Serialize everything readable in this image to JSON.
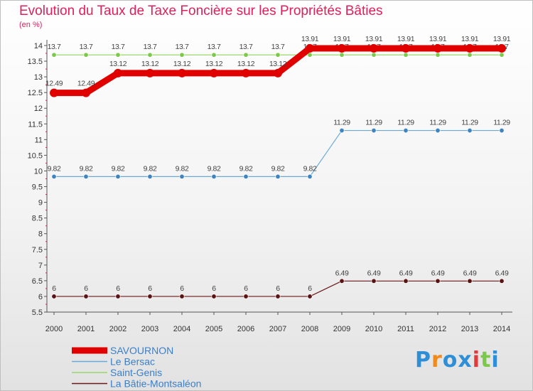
{
  "chart_data": {
    "type": "line",
    "title": "Evolution du Taux de Taxe Foncière sur les Propriétés Bâties",
    "subtitle": "(en %)",
    "xlabel": "",
    "ylabel": "",
    "x": [
      "2000",
      "2001",
      "2002",
      "2003",
      "2004",
      "2005",
      "2006",
      "2007",
      "2008",
      "2009",
      "2010",
      "2011",
      "2012",
      "2013",
      "2014"
    ],
    "ylim": [
      5.5,
      14
    ],
    "yticks": [
      "5.5",
      "6",
      "6.5",
      "7",
      "7.5",
      "8",
      "8.5",
      "9",
      "9.5",
      "10",
      "10.5",
      "11",
      "11.5",
      "12",
      "12.5",
      "13",
      "13.5",
      "14"
    ],
    "series": [
      {
        "name": "La Bâtie-Montsaléon",
        "color": "#6b1a1a",
        "marker_color": "#5a1212",
        "width": 1.2,
        "values": [
          6,
          6,
          6,
          6,
          6,
          6,
          6,
          6,
          6,
          6.49,
          6.49,
          6.49,
          6.49,
          6.49,
          6.49
        ],
        "labels": [
          "6",
          "6",
          "6",
          "6",
          "6",
          "6",
          "6",
          "6",
          "6",
          "6.49",
          "6.49",
          "6.49",
          "6.49",
          "6.49",
          "6.49"
        ]
      },
      {
        "name": "Le Bersac",
        "color": "#6aaad8",
        "marker_color": "#3f83bf",
        "width": 1.2,
        "values": [
          9.82,
          9.82,
          9.82,
          9.82,
          9.82,
          9.82,
          9.82,
          9.82,
          9.82,
          11.29,
          11.29,
          11.29,
          11.29,
          11.29,
          11.29
        ],
        "labels": [
          "9.82",
          "9.82",
          "9.82",
          "9.82",
          "9.82",
          "9.82",
          "9.82",
          "9.82",
          "9.82",
          "11.29",
          "11.29",
          "11.29",
          "11.29",
          "11.29",
          "11.29"
        ]
      },
      {
        "name": "Saint-Genis",
        "color": "#9ad86a",
        "marker_color": "#7cc84a",
        "width": 1.2,
        "values": [
          13.7,
          13.7,
          13.7,
          13.7,
          13.7,
          13.7,
          13.7,
          13.7,
          13.7,
          13.7,
          13.7,
          13.7,
          13.7,
          13.7,
          13.7
        ],
        "labels": [
          "13.7",
          "13.7",
          "13.7",
          "13.7",
          "13.7",
          "13.7",
          "13.7",
          "13.7",
          "13.7",
          "13.7",
          "13.7",
          "13.7",
          "13.7",
          "13.7",
          "13.7"
        ]
      },
      {
        "name": "SAVOURNON",
        "color": "#e00000",
        "marker_color": "#e00000",
        "width": 9,
        "values": [
          12.49,
          12.49,
          13.12,
          13.12,
          13.12,
          13.12,
          13.12,
          13.12,
          13.91,
          13.91,
          13.91,
          13.91,
          13.91,
          13.91,
          13.91
        ],
        "labels": [
          "12.49",
          "12.49",
          "13.12",
          "13.12",
          "13.12",
          "13.12",
          "13.12",
          "13.12",
          "13.91",
          "13.91",
          "13.91",
          "13.91",
          "13.91",
          "13.91",
          "13.91"
        ]
      }
    ],
    "legend": {
      "placement": "bottom-left",
      "order": [
        "SAVOURNON",
        "Le Bersac",
        "Saint-Genis",
        "La Bâtie-Montsaléon"
      ]
    },
    "grid": false
  },
  "brand": {
    "letters": [
      "P",
      "r",
      "o",
      "x",
      "i",
      "t",
      "i"
    ],
    "colors": [
      "#2e8fd8",
      "#f08a1c",
      "#2e8fd8",
      "#2e8fd8",
      "#e23a3a",
      "#7cc84a",
      "#2e8fd8"
    ]
  },
  "colors": {
    "title": "#e0205a",
    "axis": "#555555",
    "tick_label": "#333333",
    "value_label": "#444444"
  }
}
